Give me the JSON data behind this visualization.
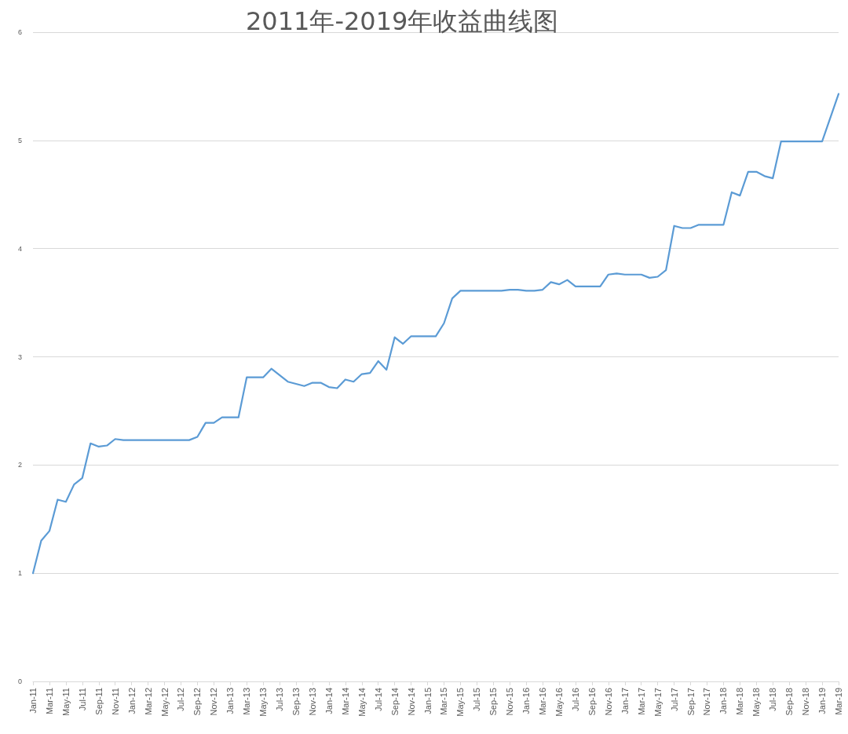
{
  "chart_data": {
    "type": "line",
    "title": "2011年-2019年收益曲线图",
    "categories": [
      "Jan-11",
      null,
      "Mar-11",
      null,
      "May-11",
      null,
      "Jul-11",
      null,
      "Sep-11",
      null,
      "Nov-11",
      null,
      "Jan-12",
      null,
      "Mar-12",
      null,
      "May-12",
      null,
      "Jul-12",
      null,
      "Sep-12",
      null,
      "Nov-12",
      null,
      "Jan-13",
      null,
      "Mar-13",
      null,
      "May-13",
      null,
      "Jul-13",
      null,
      "Sep-13",
      null,
      "Nov-13",
      null,
      "Jan-14",
      null,
      "Mar-14",
      null,
      "May-14",
      null,
      "Jul-14",
      null,
      "Sep-14",
      null,
      "Nov-14",
      null,
      "Jan-15",
      null,
      "Mar-15",
      null,
      "May-15",
      null,
      "Jul-15",
      null,
      "Sep-15",
      null,
      "Nov-15",
      null,
      "Jan-16",
      null,
      "Mar-16",
      null,
      "May-16",
      null,
      "Jul-16",
      null,
      "Sep-16",
      null,
      "Nov-16",
      null,
      "Jan-17",
      null,
      "Mar-17",
      null,
      "May-17",
      null,
      "Jul-17",
      null,
      "Sep-17",
      null,
      "Nov-17",
      null,
      "Jan-18",
      null,
      "Mar-18",
      null,
      "May-18",
      null,
      "Jul-18",
      null,
      "Sep-18",
      null,
      "Nov-18",
      null,
      "Jan-19",
      null,
      "Mar-19"
    ],
    "series": [
      {
        "color": "#5b9bd5",
        "values": [
          1.0,
          1.3,
          1.39,
          1.68,
          1.66,
          1.82,
          1.88,
          2.2,
          2.17,
          2.18,
          2.24,
          2.23,
          2.23,
          2.23,
          2.23,
          2.23,
          2.23,
          2.23,
          2.23,
          2.23,
          2.26,
          2.39,
          2.39,
          2.44,
          2.44,
          2.44,
          2.81,
          2.81,
          2.81,
          2.89,
          2.83,
          2.77,
          2.75,
          2.73,
          2.76,
          2.76,
          2.72,
          2.71,
          2.79,
          2.77,
          2.84,
          2.85,
          2.96,
          2.88,
          3.18,
          3.12,
          3.19,
          3.19,
          3.19,
          3.19,
          3.31,
          3.54,
          3.61,
          3.61,
          3.61,
          3.61,
          3.61,
          3.61,
          3.62,
          3.62,
          3.61,
          3.61,
          3.62,
          3.69,
          3.67,
          3.71,
          3.65,
          3.65,
          3.65,
          3.65,
          3.76,
          3.77,
          3.76,
          3.76,
          3.76,
          3.73,
          3.74,
          3.8,
          4.21,
          4.19,
          4.19,
          4.22,
          4.22,
          4.22,
          4.22,
          4.52,
          4.49,
          4.71,
          4.71,
          4.67,
          4.65,
          4.99,
          4.99,
          4.99,
          4.99,
          4.99,
          4.99,
          5.21,
          5.43
        ]
      }
    ],
    "ylim": [
      0,
      6
    ],
    "yticks": [
      0,
      1,
      2,
      3,
      4,
      5,
      6
    ],
    "grid": "y",
    "marker": "none",
    "line_style": "solid"
  }
}
